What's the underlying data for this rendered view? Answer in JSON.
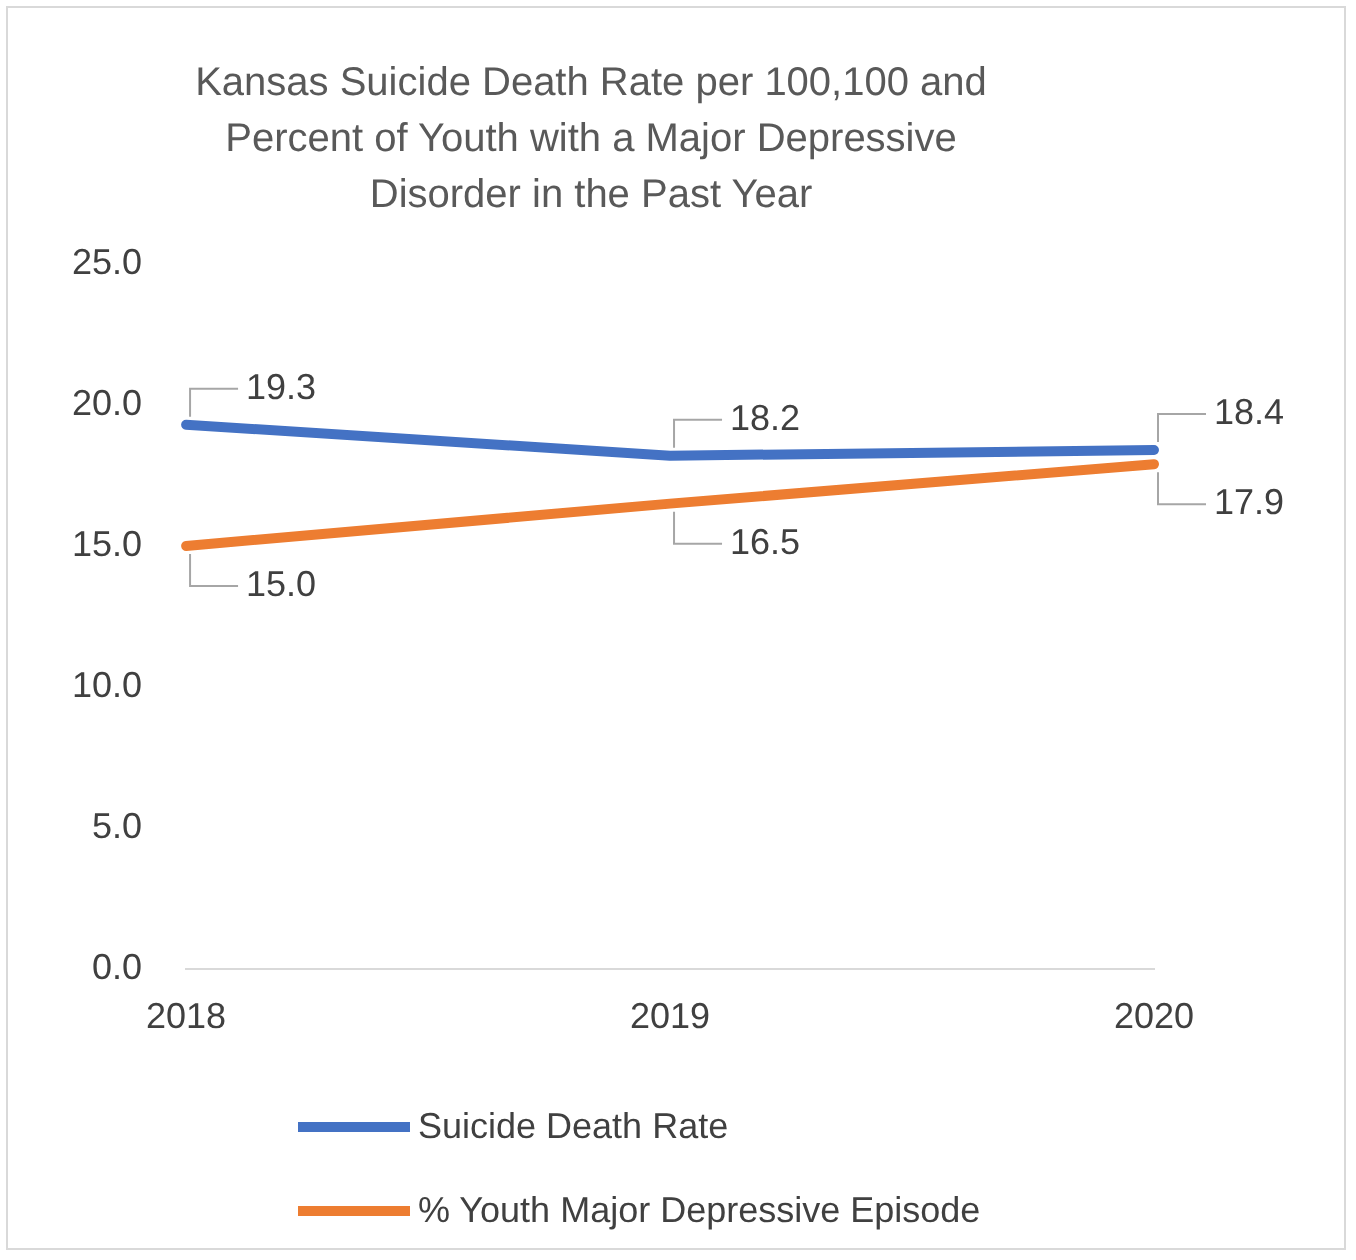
{
  "chart_data": {
    "type": "line",
    "title": [
      "Kansas Suicide Death Rate per 100,100 and",
      "Percent of Youth with a Major Depressive",
      "Disorder in the Past Year"
    ],
    "categories": [
      "2018",
      "2019",
      "2020"
    ],
    "series": [
      {
        "name": "Suicide Death Rate",
        "color": "#4472c4",
        "values": [
          19.3,
          18.2,
          18.4
        ],
        "value_labels": [
          "19.3",
          "18.2",
          "18.4"
        ]
      },
      {
        "name": "% Youth Major Depressive Episode",
        "color": "#ed7d31",
        "values": [
          15.0,
          16.5,
          17.9
        ],
        "value_labels": [
          "15.0",
          "16.5",
          "17.9"
        ]
      }
    ],
    "ylim": [
      0,
      25
    ],
    "yticks": [
      {
        "value": 0,
        "label": "0.0"
      },
      {
        "value": 5,
        "label": "5.0"
      },
      {
        "value": 10,
        "label": "10.0"
      },
      {
        "value": 15,
        "label": "15.0"
      },
      {
        "value": 20,
        "label": "20.0"
      },
      {
        "value": 25,
        "label": "25.0"
      }
    ],
    "grid": false,
    "legend": "bottom",
    "marker": "none",
    "line_style": "solid"
  }
}
